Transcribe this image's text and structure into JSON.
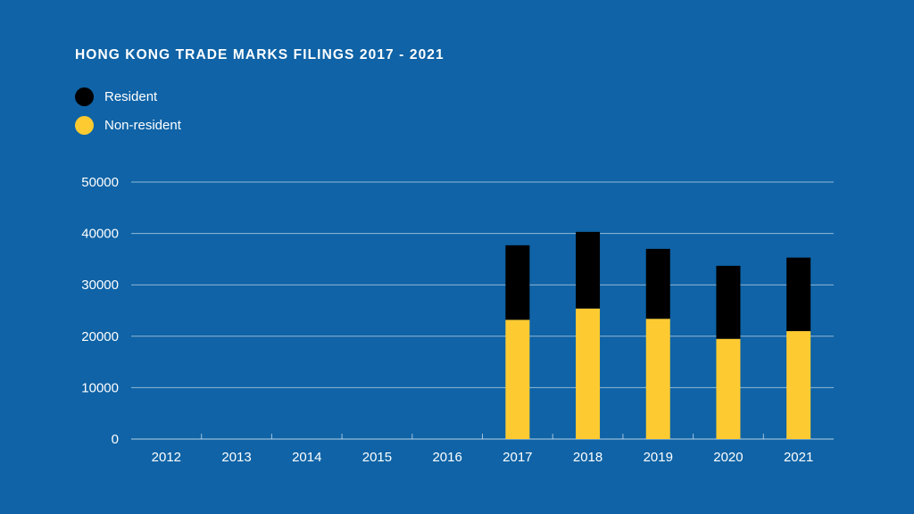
{
  "title": "HONG KONG TRADE MARKS FILINGS 2017 - 2021",
  "legend": [
    {
      "label": "Resident",
      "color": "#000000"
    },
    {
      "label": "Non-resident",
      "color": "#fdcb31"
    }
  ],
  "chart_data": {
    "type": "bar",
    "stacked": true,
    "title": "HONG KONG TRADE MARKS FILINGS 2017 - 2021",
    "categories": [
      "2012",
      "2013",
      "2014",
      "2015",
      "2016",
      "2017",
      "2018",
      "2019",
      "2020",
      "2021"
    ],
    "series": [
      {
        "name": "Non-resident",
        "color": "#fdcb31",
        "values": [
          null,
          null,
          null,
          null,
          null,
          23200,
          25400,
          23400,
          19500,
          21000
        ]
      },
      {
        "name": "Resident",
        "color": "#000000",
        "values": [
          null,
          null,
          null,
          null,
          null,
          14500,
          14900,
          13600,
          14200,
          14300
        ]
      }
    ],
    "yticks": [
      0,
      10000,
      20000,
      30000,
      40000,
      50000
    ],
    "ylim": [
      0,
      50000
    ],
    "grid": true,
    "legend_position": "top-left",
    "xlabel": "",
    "ylabel": ""
  }
}
